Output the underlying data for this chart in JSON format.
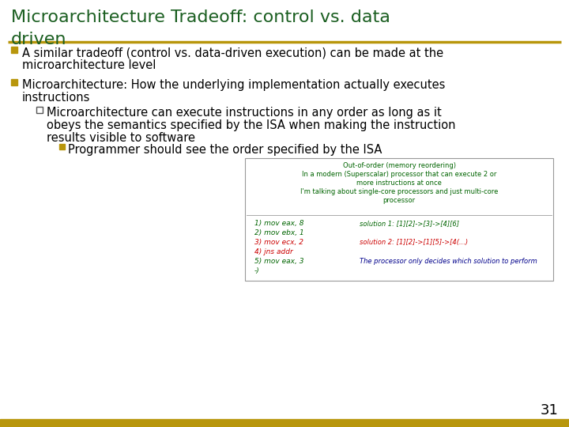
{
  "title_line1": "Microarchitecture Tradeoff: control vs. data",
  "title_line2": "driven",
  "title_color": "#1a5e20",
  "separator_color": "#B8960C",
  "bullet_color": "#B8960C",
  "sub_bullet_color": "#555555",
  "text_color": "#000000",
  "background_color": "#ffffff",
  "page_number": "31",
  "bullet1_line1": "A similar tradeoff (control vs. data-driven execution) can be made at the",
  "bullet1_line2": "microarchitecture level",
  "bullet2_line1": "Microarchitecture: How the underlying implementation actually executes",
  "bullet2_line2": "instructions",
  "sub_line1": "Microarchitecture can execute instructions in any order as long as it",
  "sub_line2": "obeys the semantics specified by the ISA when making the instruction",
  "sub_line3": "results visible to software",
  "subsub_line": "Programmer should see the order specified by the ISA",
  "box_header": [
    "Out-of-order (memory reordering)",
    "In a modern (Superscalar) processor that can execute 2 or",
    "more instructions at once",
    "I'm talking about single-core processors and just multi-core",
    "processor"
  ],
  "box_left": [
    "1) mov eax, 8",
    "2) mov ebx, 1",
    "3) mov ecx, 2",
    "4) jns addr",
    "5) mov eax, 3",
    "-)"
  ],
  "box_left_colors": [
    "#006400",
    "#006400",
    "#cc0000",
    "#cc0000",
    "#006400",
    "#006400"
  ],
  "box_right": [
    "solution 1: [1][2]->[3]->[4][6]",
    "",
    "solution 2: [1][2]->[1][5]->[4(...)",
    "",
    "The processor only decides which solution to perform"
  ],
  "box_right_colors": [
    "#006400",
    "#006400",
    "#cc0000",
    "#cc0000",
    "#00008B"
  ]
}
